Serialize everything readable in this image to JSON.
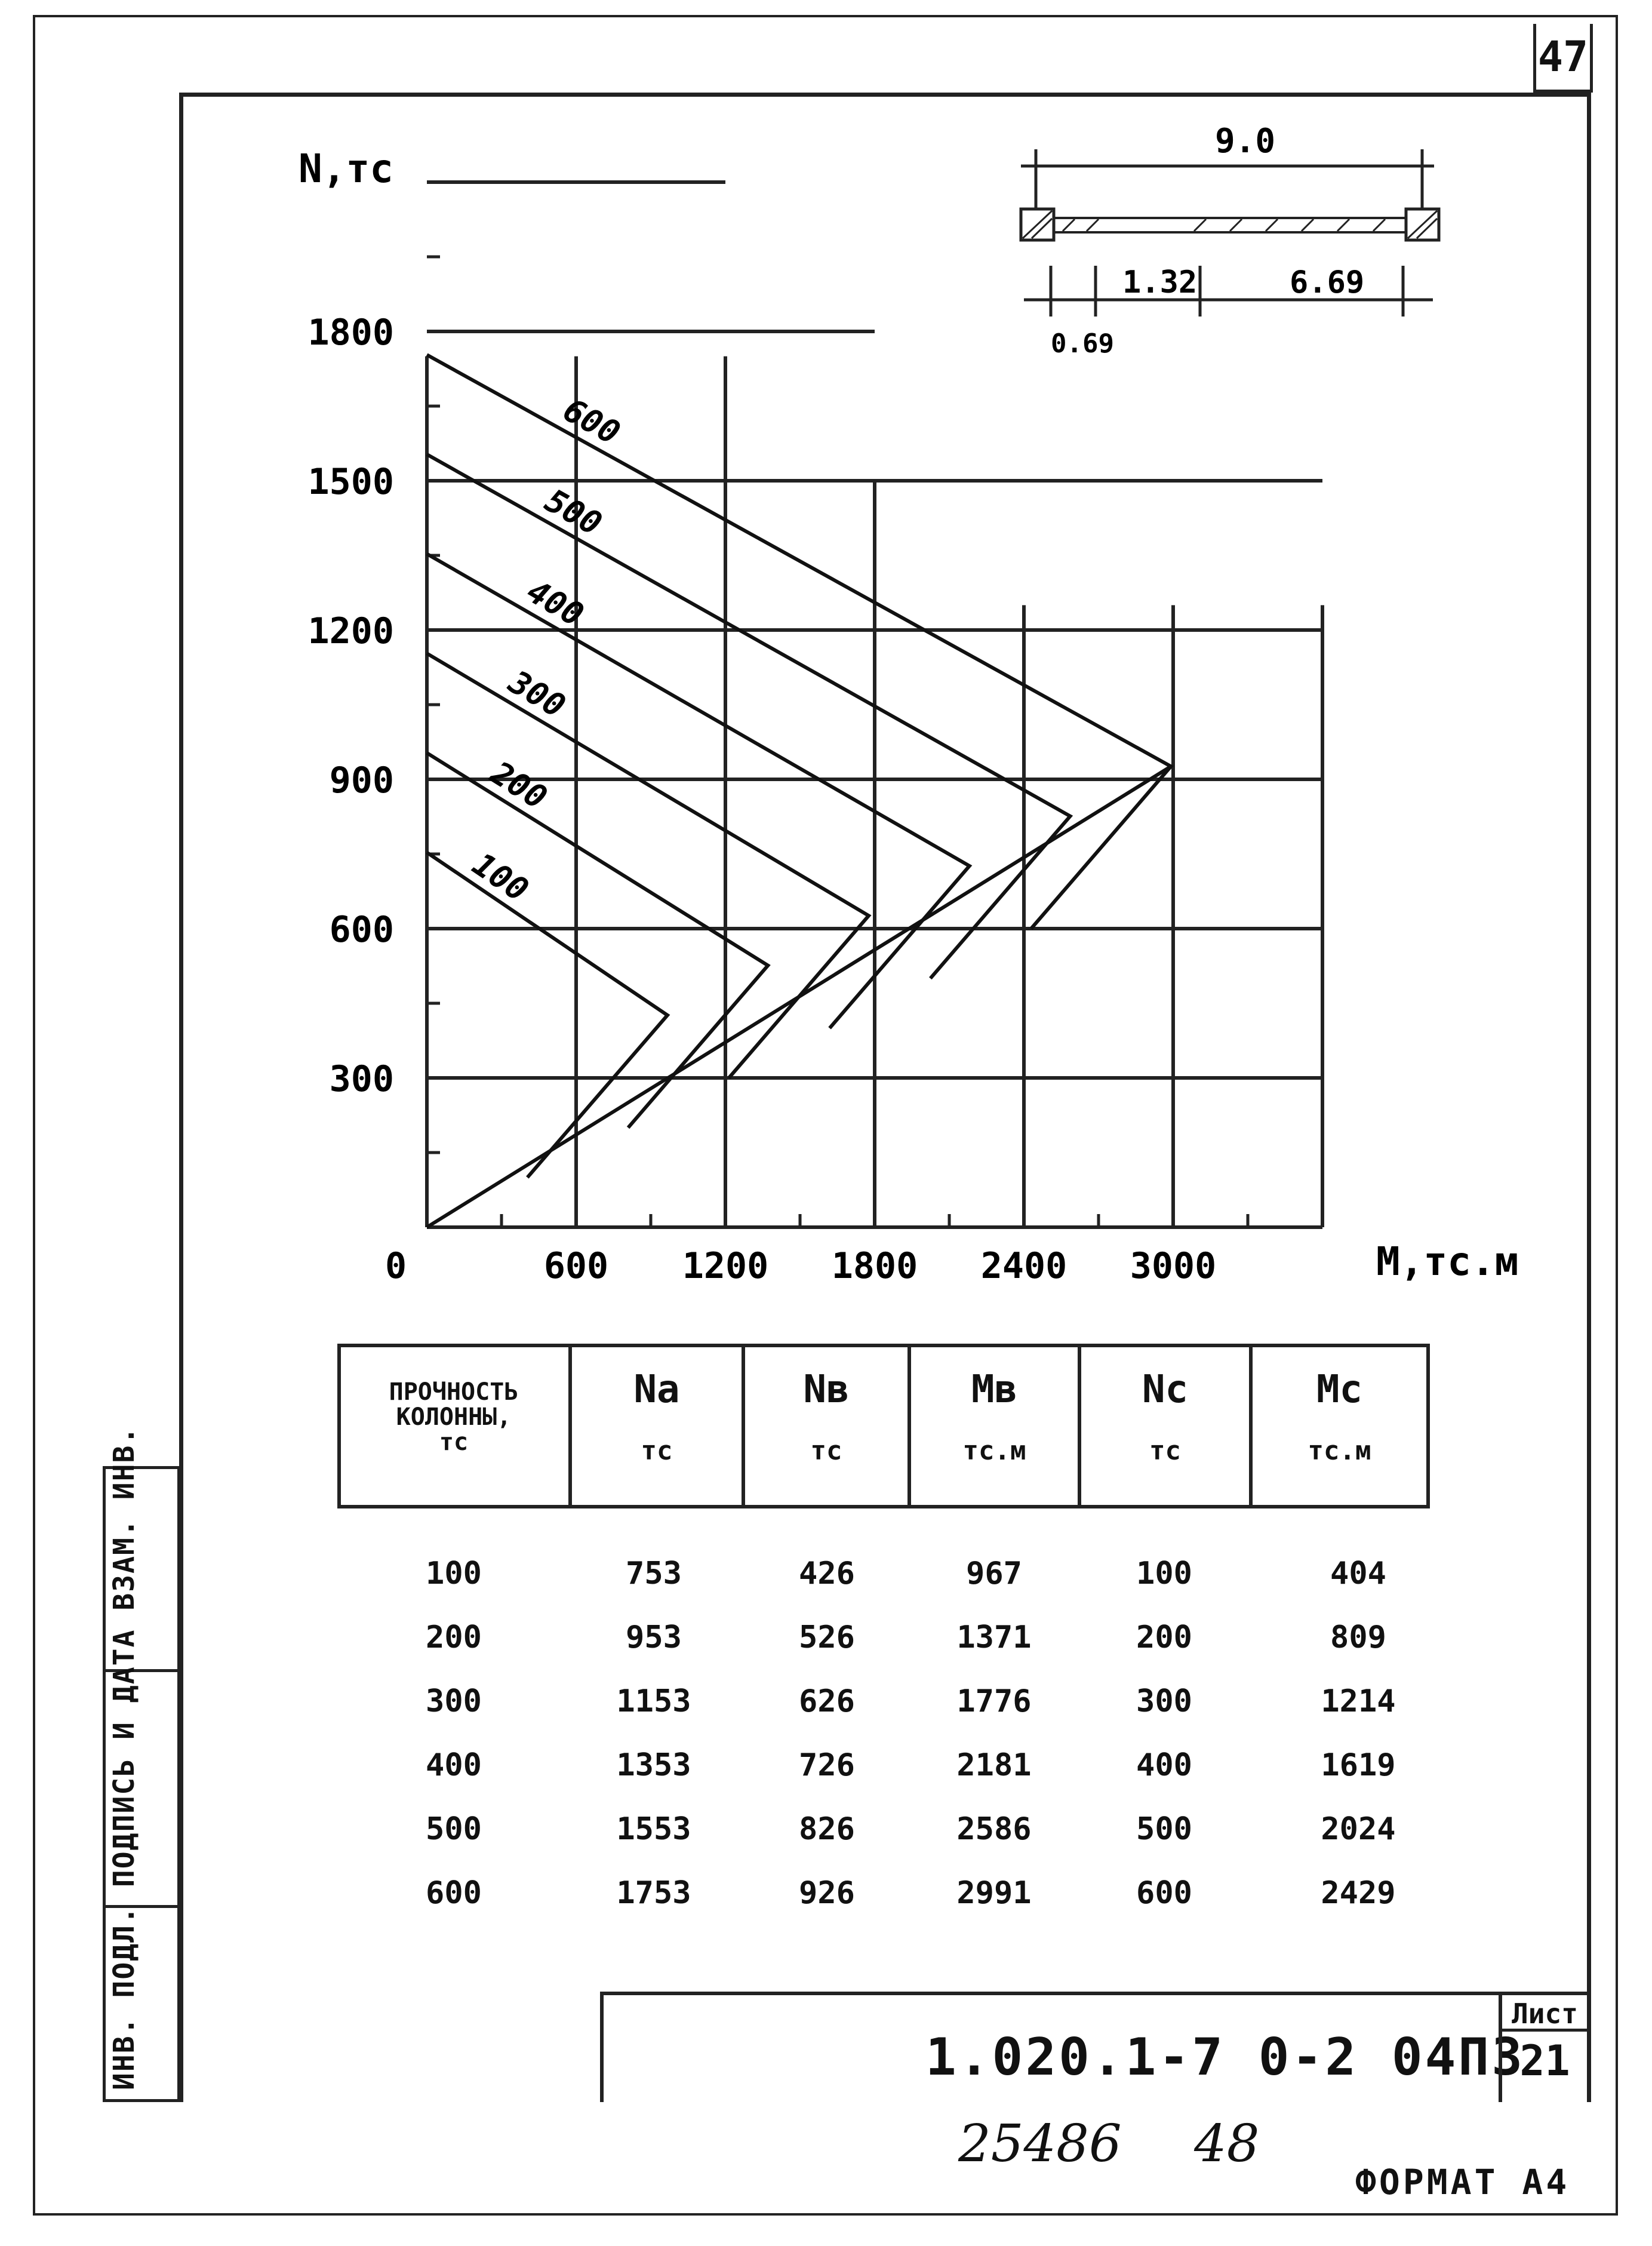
{
  "page_number": "47",
  "chart_data": {
    "type": "line",
    "ylabel": "N,тс",
    "xlabel": "М,тс.м",
    "xlim": [
      0,
      3600
    ],
    "ylim": [
      0,
      2100
    ],
    "x_ticks": [
      "0",
      "600",
      "1200",
      "1800",
      "2400",
      "3000"
    ],
    "y_ticks": [
      "300",
      "600",
      "900",
      "1200",
      "1500",
      "1800"
    ],
    "grid": true,
    "series": [
      {
        "name": "100",
        "points": [
          [
            0,
            753
          ],
          [
            967,
            426
          ],
          [
            404,
            100
          ]
        ]
      },
      {
        "name": "200",
        "points": [
          [
            0,
            953
          ],
          [
            1371,
            526
          ],
          [
            809,
            200
          ]
        ]
      },
      {
        "name": "300",
        "points": [
          [
            0,
            1153
          ],
          [
            1776,
            626
          ],
          [
            1214,
            300
          ]
        ]
      },
      {
        "name": "400",
        "points": [
          [
            0,
            1353
          ],
          [
            2181,
            726
          ],
          [
            1619,
            400
          ]
        ]
      },
      {
        "name": "500",
        "points": [
          [
            0,
            1553
          ],
          [
            2586,
            826
          ],
          [
            2024,
            500
          ]
        ]
      },
      {
        "name": "600",
        "points": [
          [
            0,
            1753
          ],
          [
            2991,
            926
          ],
          [
            2429,
            600
          ]
        ]
      }
    ],
    "envelope": [
      [
        0,
        0
      ],
      [
        2991,
        926
      ]
    ]
  },
  "scheme": {
    "total": "9.0",
    "dim_left": "0.69",
    "dim_mid": "1.32",
    "dim_right": "6.69"
  },
  "table": {
    "headers": [
      {
        "line1": "ПРОЧНОСТЬ",
        "line2": "КОЛОННЫ,",
        "line3": "тс"
      },
      {
        "line1": "Na",
        "line2": "тс"
      },
      {
        "line1": "Nв",
        "line2": "тс"
      },
      {
        "line1": "Mв",
        "line2": "тс.м"
      },
      {
        "line1": "Nс",
        "line2": "тс"
      },
      {
        "line1": "Mс",
        "line2": "тс.м"
      }
    ],
    "rows": [
      [
        "100",
        "753",
        "426",
        "967",
        "100",
        "404"
      ],
      [
        "200",
        "953",
        "526",
        "1371",
        "200",
        "809"
      ],
      [
        "300",
        "1153",
        "626",
        "1776",
        "300",
        "1214"
      ],
      [
        "400",
        "1353",
        "726",
        "2181",
        "400",
        "1619"
      ],
      [
        "500",
        "1553",
        "826",
        "2586",
        "500",
        "2024"
      ],
      [
        "600",
        "1753",
        "926",
        "2991",
        "600",
        "2429"
      ]
    ]
  },
  "side_stamp": "ИНВ. ПОДЛ.  ПОДПИСЬ И ДАТА  ВЗАМ. ИНВ.",
  "title_block": {
    "designation": "1.020.1-7   0-2   04ПЗ",
    "sheet_label": "Лист",
    "sheet_number": "21"
  },
  "handwritten": {
    "left": "25486",
    "right": "48"
  },
  "format_label": "ФОРМАТ А4"
}
